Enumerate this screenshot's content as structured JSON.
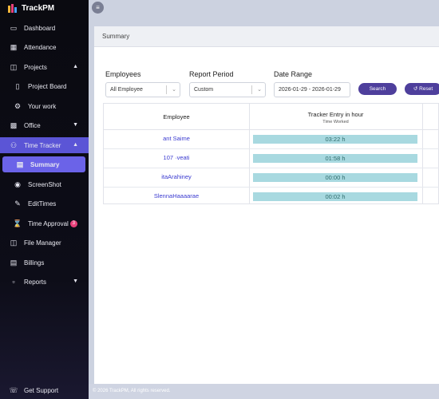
{
  "brand": {
    "name": "TrackPM"
  },
  "sidebar": {
    "items": [
      {
        "label": "Dashboard",
        "icon": "monitor-icon"
      },
      {
        "label": "Attendance",
        "icon": "calendar-icon"
      },
      {
        "label": "Projects",
        "icon": "folder-icon"
      },
      {
        "label": "Project Board",
        "icon": "board-icon"
      },
      {
        "label": "Your work",
        "icon": "gears-icon"
      },
      {
        "label": "Office",
        "icon": "building-icon"
      },
      {
        "label": "Time Tracker",
        "icon": "users-icon"
      },
      {
        "label": "Summary",
        "icon": "chart-icon"
      },
      {
        "label": "ScreenShot",
        "icon": "camera-icon"
      },
      {
        "label": "EditTimes",
        "icon": "edit-icon"
      },
      {
        "label": "Time Approval",
        "icon": "hourglass-icon",
        "badge": "3"
      },
      {
        "label": "File Manager",
        "icon": "folder-open-icon"
      },
      {
        "label": "Billings",
        "icon": "bill-icon"
      },
      {
        "label": "Reports",
        "icon": "report-icon"
      }
    ],
    "support": "Get Support"
  },
  "page": {
    "title": "Summary",
    "filters": {
      "employees_label": "Employees",
      "employees_value": "All Employee",
      "period_label": "Report Period",
      "period_value": "Custom",
      "range_label": "Date Range",
      "range_value": "2026-01-29 - 2026-01-29",
      "search": "Search",
      "reset": "Reset"
    },
    "table": {
      "col_employee": "Employee",
      "col_tracker": "Tracker Entry in hour",
      "col_tracker_sub": "Time Worked",
      "rows": [
        {
          "employee": "ant Saime",
          "time": "03:22 h",
          "fill": 1.0
        },
        {
          "employee": "107 ·veati",
          "time": "01:58 h",
          "fill": 1.0
        },
        {
          "employee": "itaArahiney",
          "time": "00:00 h",
          "fill": 1.0
        },
        {
          "employee": "SlennaHaaaarae",
          "time": "00:02 h",
          "fill": 1.0
        }
      ]
    }
  },
  "footer": {
    "text": "© 2026 TrackPM, All rights reserved."
  },
  "colors": {
    "accent": "#5b55d6",
    "active": "#6b63e8",
    "bar": "#a8d9e0",
    "button": "#4e3f9c"
  }
}
